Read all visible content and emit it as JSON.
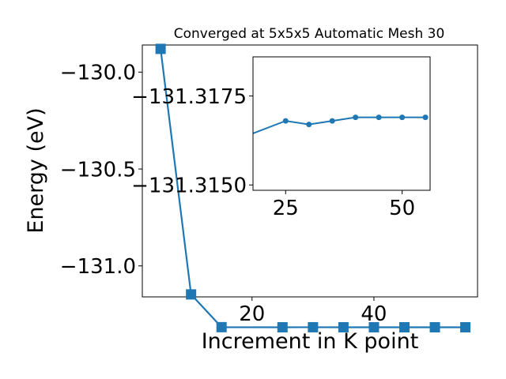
{
  "chart_data": [
    {
      "type": "line",
      "title": "Converged at 5x5x5 Automatic Mesh 30",
      "xlabel": "Increment in K point",
      "ylabel": "Energy (eV)",
      "xlim": [
        2,
        57
      ],
      "ylim": [
        -131.16,
        -129.86
      ],
      "xticks": [
        20,
        40
      ],
      "xtick_labels": [
        "20",
        "40"
      ],
      "yticks": [
        -130.0,
        -130.5,
        -131.0
      ],
      "ytick_labels": [
        "−130.0",
        "−130.5",
        "−131.0"
      ],
      "marker": "square",
      "grid": false,
      "color": "#1f77b4",
      "x": [
        5,
        10,
        15,
        25,
        30,
        35,
        40,
        45,
        50,
        55
      ],
      "y": [
        -129.88,
        -131.1472,
        -131.3163,
        -131.3168,
        -131.3167,
        -131.3168,
        -131.3169,
        -131.3169,
        -131.3169,
        -131.3169
      ]
    },
    {
      "type": "line",
      "placement": "inset",
      "xlim": [
        18,
        56
      ],
      "ylim": [
        -131.31485,
        -131.3186
      ],
      "xticks": [
        25,
        50
      ],
      "xtick_labels": [
        "25",
        "50"
      ],
      "yticks": [
        -131.3175,
        -131.315
      ],
      "ytick_labels": [
        "−131.3175",
        "−131.3150"
      ],
      "marker": "circle",
      "grid": false,
      "color": "#1f77b4",
      "x": [
        15,
        25,
        30,
        35,
        40,
        45,
        50,
        55
      ],
      "y": [
        -131.3163,
        -131.3168,
        -131.3167,
        -131.3168,
        -131.3169,
        -131.3169,
        -131.3169,
        -131.3169
      ]
    }
  ]
}
